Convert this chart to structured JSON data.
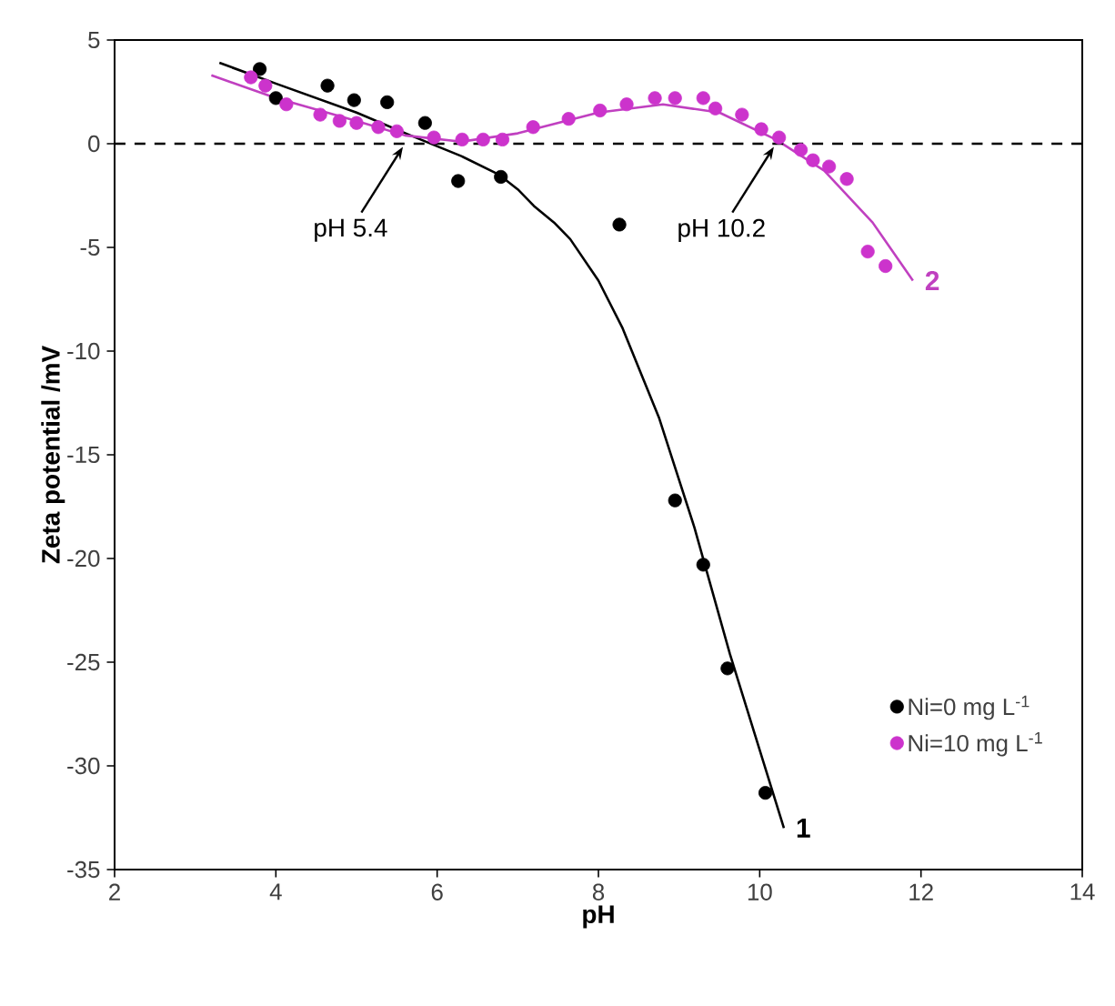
{
  "chart_data": {
    "type": "scatter",
    "xlabel": "pH",
    "ylabel": "Zeta potential /mV",
    "xlim": [
      2,
      14
    ],
    "xticks": [
      2,
      4,
      6,
      8,
      10,
      12,
      14
    ],
    "ylim": [
      -35,
      5
    ],
    "yticks": [
      -35,
      -30,
      -25,
      -20,
      -15,
      -10,
      -5,
      0,
      5
    ],
    "grid": false,
    "legend": "bottom right",
    "marker": "circle",
    "series": [
      {
        "name": "Ni=0 mg L$^{-1}$",
        "color": "#000000",
        "x": [
          3.8,
          4.0,
          4.64,
          4.97,
          5.38,
          5.85,
          6.26,
          6.79,
          8.26,
          8.95,
          9.3,
          9.6,
          10.07
        ],
        "values": [
          3.6,
          2.2,
          2.8,
          2.1,
          2.0,
          1.0,
          -1.8,
          -1.6,
          -3.9,
          -17.2,
          -20.3,
          -25.3,
          -31.3
        ]
      },
      {
        "name": "Ni=10 mg L$^{-1}$",
        "color": "#cc33cc",
        "x": [
          3.69,
          3.87,
          4.13,
          4.55,
          4.79,
          5.0,
          5.27,
          5.5,
          5.96,
          6.31,
          6.57,
          6.81,
          7.19,
          7.63,
          8.02,
          8.35,
          8.7,
          8.95,
          9.3,
          9.45,
          9.78,
          10.02,
          10.24,
          10.51,
          10.66,
          10.86,
          11.08,
          11.34,
          11.56
        ],
        "values": [
          3.2,
          2.8,
          1.9,
          1.4,
          1.1,
          1.0,
          0.8,
          0.6,
          0.3,
          0.2,
          0.2,
          0.2,
          0.8,
          1.2,
          1.6,
          1.9,
          2.2,
          2.2,
          2.2,
          1.7,
          1.4,
          0.7,
          0.3,
          -0.3,
          -0.8,
          -1.1,
          -1.7,
          -5.2,
          -5.9
        ]
      },
      {
        "name": "1",
        "type": "line",
        "marker": "none",
        "color": "#000000",
        "x": [
          3.3,
          4.0,
          5.0,
          5.67,
          6.3,
          6.77,
          7.0,
          7.2,
          7.45,
          7.65,
          8.0,
          8.3,
          8.75,
          9.19,
          9.63,
          10.3
        ],
        "values": [
          3.9,
          2.9,
          1.5,
          0.4,
          -0.6,
          -1.5,
          -2.2,
          -3.0,
          -3.8,
          -4.6,
          -6.6,
          -8.9,
          -13.2,
          -18.5,
          -24.6,
          -33.0
        ]
      },
      {
        "name": "2",
        "type": "line",
        "marker": "none",
        "color": "#c040c0",
        "x": [
          3.2,
          4.0,
          5.0,
          5.6,
          6.3,
          7.0,
          8.0,
          8.8,
          9.5,
          10.2,
          10.8,
          11.4,
          11.9
        ],
        "values": [
          3.3,
          2.2,
          1.1,
          0.4,
          0.1,
          0.5,
          1.5,
          1.9,
          1.5,
          0.2,
          -1.3,
          -3.8,
          -6.6
        ]
      }
    ],
    "ref_lines": [
      {
        "axis": "y",
        "value": 0,
        "color": "#000000",
        "line_style": "dashed"
      }
    ],
    "annotations": [
      {
        "text": "pH 5.4",
        "x": 5.6,
        "y": 0
      },
      {
        "text": "pH 10.2",
        "x": 10.2,
        "y": 0
      }
    ]
  }
}
